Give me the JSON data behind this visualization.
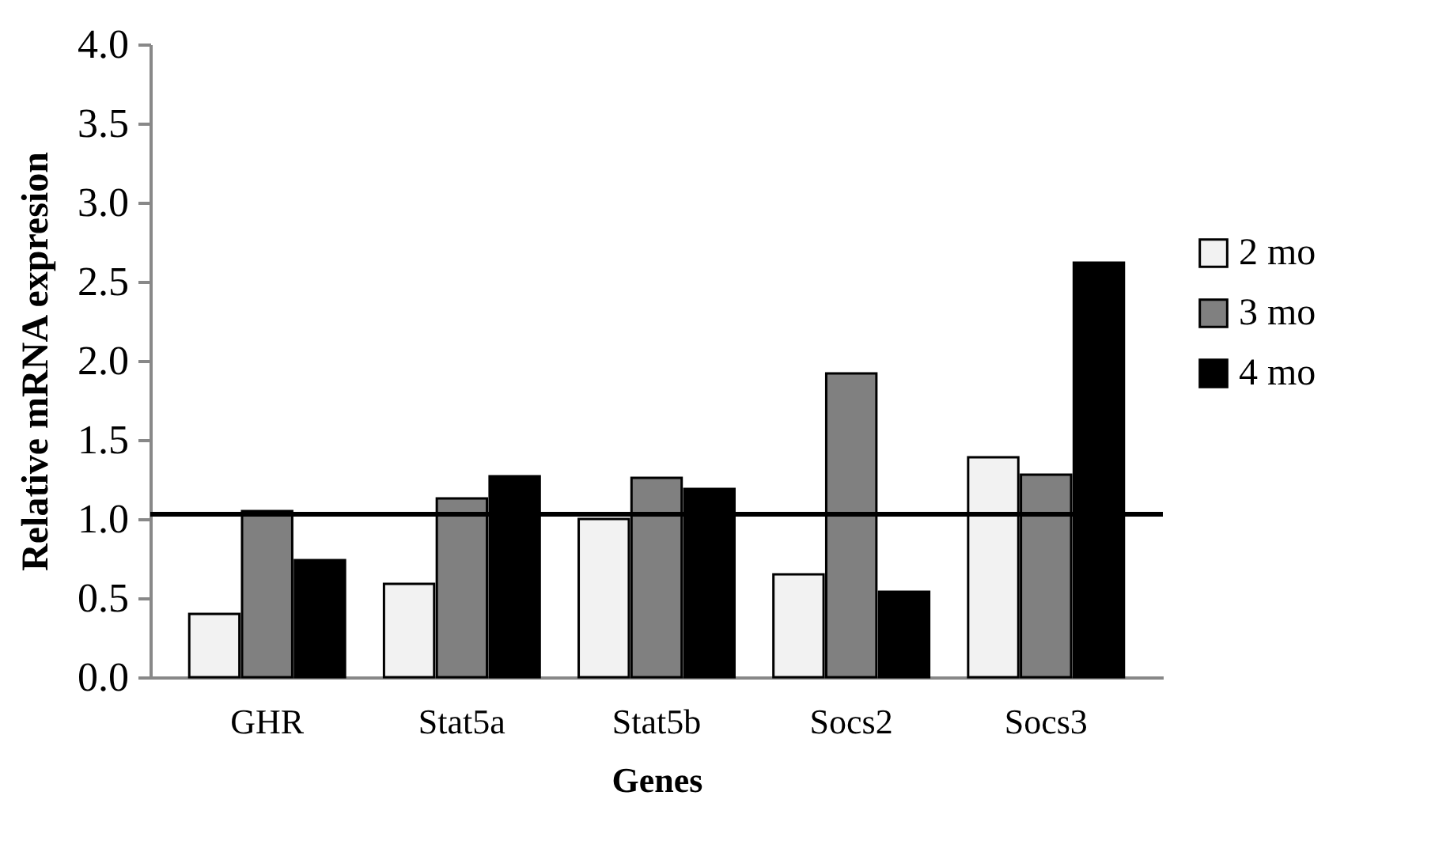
{
  "chart_data": {
    "type": "bar",
    "xlabel": "Genes",
    "ylabel": "Relative mRNA expresion",
    "categories": [
      "GHR",
      "Stat5a",
      "Stat5b",
      "Socs2",
      "Socs3"
    ],
    "series": [
      {
        "name": "2 mo",
        "color": "#f2f2f2",
        "values": [
          0.4,
          0.59,
          1.0,
          0.65,
          1.39
        ]
      },
      {
        "name": "3 mo",
        "color": "#808080",
        "values": [
          1.05,
          1.13,
          1.26,
          1.92,
          1.28
        ]
      },
      {
        "name": "4 mo",
        "color": "#000000",
        "values": [
          0.74,
          1.27,
          1.19,
          0.54,
          2.62
        ]
      }
    ],
    "ylim": [
      0,
      4
    ],
    "yticks": [
      {
        "value": 0,
        "label": "0.0"
      },
      {
        "value": 0.5,
        "label": "0.5"
      },
      {
        "value": 1,
        "label": "1.0"
      },
      {
        "value": 1.5,
        "label": "1.5"
      },
      {
        "value": 2,
        "label": "2.0"
      },
      {
        "value": 2.5,
        "label": "2.5"
      },
      {
        "value": 3,
        "label": "3.0"
      },
      {
        "value": 3.5,
        "label": "3.5"
      },
      {
        "value": 4,
        "label": "4.0"
      }
    ],
    "ref_lines": [
      {
        "axis": "y",
        "value": 1.03,
        "color": "#000000",
        "line_style": "solid"
      }
    ],
    "grid": false,
    "legend": "right"
  }
}
